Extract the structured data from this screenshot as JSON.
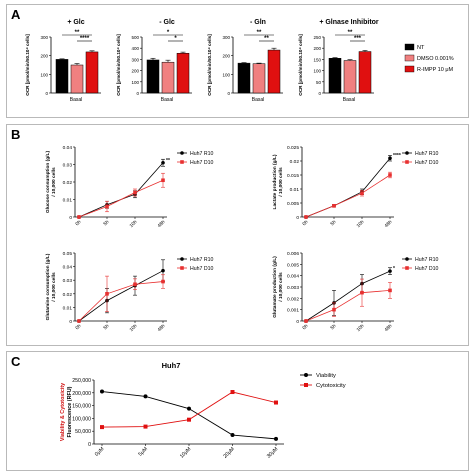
{
  "panels": {
    "a": "A",
    "b": "B",
    "c": "C"
  },
  "colors": {
    "nt": "#000000",
    "dmso": "#f08080",
    "rimpp": "#e01010",
    "r10": "#000000",
    "d10": "#e83030",
    "viability": "#000000",
    "cytotoxicity": "#e01010",
    "ylabel_red": "#d01010"
  },
  "panel_a": {
    "ylabel": "OCR [pmol/min/50.10⁴ cells]",
    "xlabel": "Basal",
    "legend": [
      "NT",
      "DMSO 0.001%",
      "R-IMPP 10 μM"
    ]
  },
  "panel_b": {
    "legend_series": [
      "Huh7 R10",
      "Huh7 D10"
    ]
  },
  "panel_c": {
    "title": "Huh7",
    "ylabel_red_part": "Viability & Cytotoxicity",
    "ylabel_rest": "Fluorescence (RFU)",
    "legend_series": [
      "Viability",
      "Cytotoxicity"
    ]
  },
  "chart_data": [
    {
      "type": "bar",
      "panel": "A",
      "title": "+ Glc",
      "categories": [
        "Basal"
      ],
      "series": [
        {
          "name": "NT",
          "values": [
            180
          ],
          "error": [
            3
          ]
        },
        {
          "name": "DMSO 0.001%",
          "values": [
            150
          ],
          "error": [
            8
          ]
        },
        {
          "name": "R-IMPP 10 μM",
          "values": [
            220
          ],
          "error": [
            6
          ]
        }
      ],
      "ylim": [
        0,
        300
      ],
      "yticks": [
        0,
        100,
        200,
        300
      ],
      "significance": [
        {
          "from": 0,
          "to": 2,
          "label": "**"
        },
        {
          "from": 1,
          "to": 2,
          "label": "****"
        }
      ]
    },
    {
      "type": "bar",
      "panel": "A",
      "title": "- Glc",
      "categories": [
        "Basal"
      ],
      "series": [
        {
          "name": "NT",
          "values": [
            295
          ],
          "error": [
            15
          ]
        },
        {
          "name": "DMSO 0.001%",
          "values": [
            275
          ],
          "error": [
            18
          ]
        },
        {
          "name": "R-IMPP 10 μM",
          "values": [
            355
          ],
          "error": [
            10
          ]
        }
      ],
      "ylim": [
        0,
        500
      ],
      "yticks": [
        0,
        100,
        200,
        300,
        400,
        500
      ],
      "significance": [
        {
          "from": 0,
          "to": 2,
          "label": "*"
        },
        {
          "from": 1,
          "to": 2,
          "label": "*"
        }
      ]
    },
    {
      "type": "bar",
      "panel": "A",
      "title": "- Gln",
      "categories": [
        "Basal"
      ],
      "series": [
        {
          "name": "NT",
          "values": [
            160
          ],
          "error": [
            3
          ]
        },
        {
          "name": "DMSO 0.001%",
          "values": [
            157
          ],
          "error": [
            3
          ]
        },
        {
          "name": "R-IMPP 10 μM",
          "values": [
            230
          ],
          "error": [
            10
          ]
        }
      ],
      "ylim": [
        0,
        300
      ],
      "yticks": [
        0,
        100,
        200,
        300
      ],
      "significance": [
        {
          "from": 0,
          "to": 2,
          "label": "**"
        },
        {
          "from": 1,
          "to": 2,
          "label": "**"
        }
      ]
    },
    {
      "type": "bar",
      "panel": "A",
      "title": "+ Glnase Inhibitor",
      "categories": [
        "Basal"
      ],
      "series": [
        {
          "name": "NT",
          "values": [
            155
          ],
          "error": [
            3
          ]
        },
        {
          "name": "DMSO 0.001%",
          "values": [
            145
          ],
          "error": [
            4
          ]
        },
        {
          "name": "R-IMPP 10 μM",
          "values": [
            185
          ],
          "error": [
            5
          ]
        }
      ],
      "ylim": [
        0,
        250
      ],
      "yticks": [
        0,
        50,
        100,
        150,
        200,
        250
      ],
      "significance": [
        {
          "from": 0,
          "to": 2,
          "label": "**"
        },
        {
          "from": 1,
          "to": 2,
          "label": "***"
        }
      ]
    },
    {
      "type": "line",
      "panel": "B",
      "ylabel": "Glucose consumption (g/L) / 10,000 cells",
      "x": [
        "0h",
        "5h",
        "10h",
        "48h"
      ],
      "ylim": [
        0,
        0.04
      ],
      "yticks": [
        0,
        0.01,
        0.02,
        0.03,
        0.04
      ],
      "series": [
        {
          "name": "Huh7 R10",
          "values": [
            0,
            0.007,
            0.013,
            0.031
          ],
          "error": [
            0,
            0.002,
            0.002,
            0.002
          ]
        },
        {
          "name": "Huh7 D10",
          "values": [
            0,
            0.006,
            0.014,
            0.021
          ],
          "error": [
            0,
            0.003,
            0.002,
            0.004
          ]
        }
      ],
      "annotation": "**"
    },
    {
      "type": "line",
      "panel": "B",
      "ylabel": "Lactate production (g/L) / 10,000 cells",
      "x": [
        "0h",
        "5h",
        "10h",
        "48h"
      ],
      "ylim": [
        0,
        0.025
      ],
      "yticks": [
        0,
        0.005,
        0.01,
        0.015,
        0.02,
        0.025
      ],
      "series": [
        {
          "name": "Huh7 R10",
          "values": [
            0,
            0.004,
            0.009,
            0.021
          ],
          "error": [
            0,
            0.0005,
            0.001,
            0.001
          ]
        },
        {
          "name": "Huh7 D10",
          "values": [
            0,
            0.004,
            0.0085,
            0.015
          ],
          "error": [
            0,
            0.0005,
            0.001,
            0.001
          ]
        }
      ],
      "annotation": "****"
    },
    {
      "type": "line",
      "panel": "B",
      "ylabel": "Glutamine consumption (g/L) / 10,000 cells",
      "x": [
        "0h",
        "5h",
        "10h",
        "48h"
      ],
      "ylim": [
        0,
        0.05
      ],
      "yticks": [
        0,
        0.01,
        0.02,
        0.03,
        0.04,
        0.05
      ],
      "series": [
        {
          "name": "Huh7 R10",
          "values": [
            0,
            0.015,
            0.026,
            0.037
          ],
          "error": [
            0,
            0.009,
            0.007,
            0.008
          ]
        },
        {
          "name": "Huh7 D10",
          "values": [
            0,
            0.02,
            0.027,
            0.029
          ],
          "error": [
            0,
            0.013,
            0.004,
            0.005
          ]
        }
      ]
    },
    {
      "type": "line",
      "panel": "B",
      "ylabel": "Glutamate production (g/L) / 10,000 cells",
      "x": [
        "0h",
        "5h",
        "10h",
        "48h"
      ],
      "ylim": [
        0,
        0.006
      ],
      "yticks": [
        0,
        0.001,
        0.002,
        0.003,
        0.004,
        0.005,
        0.006
      ],
      "series": [
        {
          "name": "Huh7 R10",
          "values": [
            0,
            0.0016,
            0.0033,
            0.0044
          ],
          "error": [
            0,
            0.0011,
            0.0008,
            0.0003
          ]
        },
        {
          "name": "Huh7 D10",
          "values": [
            0,
            0.001,
            0.0025,
            0.0027
          ],
          "error": [
            0,
            0.0006,
            0.0012,
            0.0007
          ]
        }
      ],
      "annotation": "*"
    },
    {
      "type": "line",
      "panel": "C",
      "x": [
        "0μM",
        "5μM",
        "10μM",
        "20μM",
        "30μM"
      ],
      "ylim": [
        0,
        250000
      ],
      "yticks": [
        0,
        50000,
        100000,
        150000,
        200000,
        250000
      ],
      "ytick_labels": [
        "0",
        "50,000",
        "100,000",
        "150,000",
        "200,000",
        "250,000"
      ],
      "series": [
        {
          "name": "Viability",
          "values": [
            205000,
            186000,
            138000,
            35000,
            20000
          ]
        },
        {
          "name": "Cytotoxicity",
          "values": [
            66000,
            68000,
            95000,
            203000,
            162000
          ]
        }
      ]
    }
  ]
}
